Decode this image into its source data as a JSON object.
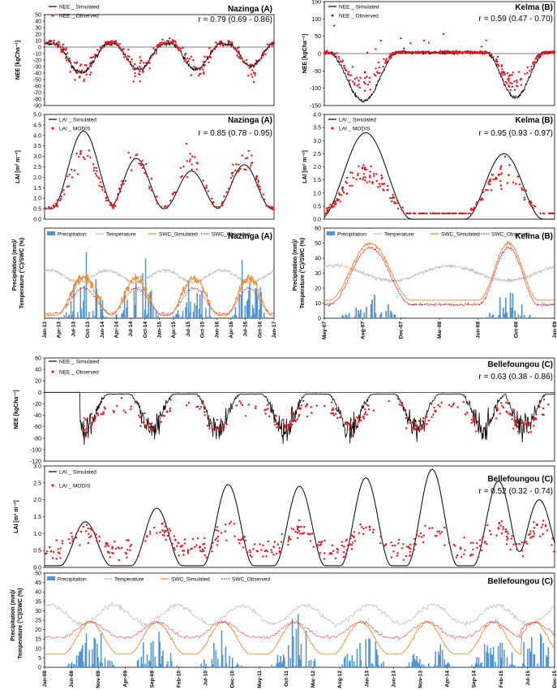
{
  "panels": {
    "nazinga_nee": {
      "site": "Nazinga (A)",
      "stat": "r = 0.79 (0.69 - 0.86)",
      "ylabel": "NEE [kgCha⁻¹]",
      "legend": [
        "NEE _ Simulated",
        "NEE _ Observed"
      ],
      "yticks": [
        "50",
        "40",
        "30",
        "20",
        "10",
        "0",
        "-10",
        "-20",
        "-30",
        "-40",
        "-50",
        "-60",
        "-70",
        "-80",
        "-90"
      ]
    },
    "kelma_nee": {
      "site": "Kelma (B)",
      "stat": "r = 0.59 (0.47 - 0.70)",
      "ylabel": "NEE [kgCha⁻¹]",
      "legend": [
        "NEE _ Simulated",
        "NEE _ Observed"
      ],
      "yticks": [
        "150",
        "100",
        "50",
        "0",
        "-50",
        "-100",
        "-150"
      ]
    },
    "nazinga_lai": {
      "site": "Nazinga (A)",
      "stat": "r = 0.85 (0.78 - 0.95)",
      "ylabel": "LAI [m² m⁻²]",
      "legend": [
        "LAI _ Simulated",
        "LAI _ MODIS"
      ],
      "yticks": [
        "5.0",
        "4.5",
        "4.0",
        "3.5",
        "3.0",
        "2.5",
        "2.0",
        "1.5",
        "1.0",
        "0.5",
        "0.0"
      ]
    },
    "kelma_lai": {
      "site": "Kelma (B)",
      "stat": "r = 0.95 (0.93 - 0.97)",
      "ylabel": "LAI [m² m⁻²]",
      "legend": [
        "LAI _ Simulated",
        "LAI _ MODIS"
      ],
      "yticks": [
        "4.0",
        "3.5",
        "3.0",
        "2.5",
        "2.0",
        "1.5",
        "1.0",
        "0.5",
        "0.0"
      ]
    },
    "nazinga_met": {
      "site": "Nazinga (A)",
      "ylabel": "Precipitation (mm)/ Temperature (°C)/SWC (%)",
      "legend": [
        "Precipitation",
        "Temperature",
        "SWC_Simulated",
        "SWC_Observed"
      ],
      "xticks": [
        "Jan-13",
        "Apr-13",
        "Jul-13",
        "Oct-13",
        "Jan-14",
        "Apr-14",
        "Jul-14",
        "Oct-14",
        "Jan-15",
        "Apr-15",
        "Jul-15",
        "Oct-15",
        "Jan-16",
        "Apr-16",
        "Jul-16",
        "Oct-16",
        "Jan-17"
      ]
    },
    "kelma_met": {
      "site": "Kelma (B)",
      "ylabel": "Precipitation (mm)/ Temperature (°C)/SWC (%)",
      "legend": [
        "Precipitation",
        "Temperature",
        "SWC_Simulated",
        "SWC_Observed"
      ],
      "yticks": [
        "60",
        "50",
        "40",
        "30",
        "20",
        "10",
        "0"
      ],
      "xticks": [
        "May-07",
        "Aug-07",
        "Dec-07",
        "Mar-08",
        "Jun-08",
        "Oct-08",
        "Jan-09"
      ]
    },
    "bel_nee": {
      "site": "Bellefoungou (C)",
      "stat": "r = 0.63 (0.38 - 0.86)",
      "ylabel": "NEE [kgCha⁻¹]",
      "legend": [
        "NEE _ Simulated",
        "NEE _ Observed"
      ],
      "yticks": [
        "60",
        "40",
        "20",
        "0",
        "-20",
        "-40",
        "-60",
        "-80",
        "-100",
        "-120"
      ]
    },
    "bel_lai": {
      "site": "Bellefoungou (C)",
      "stat": "r = 0.52 (0.32 - 0.74)",
      "ylabel": "LAI [m² m⁻²]",
      "legend": [
        "LAI _ Simulated",
        "LAI _ MODIS"
      ],
      "yticks": [
        "3.0",
        "2.5",
        "2.0",
        "1.5",
        "1.0",
        "0.5",
        "0.0"
      ]
    },
    "bel_met": {
      "site": "Bellefoungou (C)",
      "ylabel": "Precipitation (mm)/ Temperature (°C)/SWC (%)",
      "legend": [
        "Precipitation",
        "Temperature",
        "SWC_Simulated",
        "SWC_Observed"
      ],
      "yticks": [
        "50",
        "45",
        "40",
        "35",
        "30",
        "25",
        "20",
        "15",
        "10",
        "5",
        "0"
      ],
      "xticks": [
        "Jan-08",
        "Jun-08",
        "Nov-08",
        "Apr-09",
        "Sep-09",
        "Feb-10",
        "Jul-10",
        "Dec-10",
        "May-11",
        "Oct-11",
        "Mar-12",
        "Aug-12",
        "Jan-13",
        "Jun-13",
        "Nov-13",
        "Apr-14",
        "Sep-14",
        "Feb-15",
        "Jul-15",
        "Dec-15"
      ]
    }
  },
  "chart_data": [
    {
      "type": "line",
      "panel": "Nazinga (A) NEE",
      "x_range": [
        "Jan-13",
        "Jan-17"
      ],
      "ylim": [
        -90,
        50
      ],
      "series": [
        {
          "name": "NEE _ Simulated",
          "seasonal_min": [
            -45,
            -40,
            -40,
            -35
          ],
          "dry_season_level": 5
        },
        {
          "name": "NEE _ Observed",
          "range": [
            -85,
            40
          ]
        }
      ],
      "r": "0.79 (0.69 - 0.86)"
    },
    {
      "type": "line",
      "panel": "Kelma (B) NEE",
      "x_range": [
        "May-07",
        "Jan-09"
      ],
      "ylim": [
        -150,
        150
      ],
      "series": [
        {
          "name": "NEE _ Simulated",
          "seasonal_min": [
            -145,
            -145
          ],
          "dry_season_level": 5
        },
        {
          "name": "NEE _ Observed",
          "range": [
            -140,
            140
          ]
        }
      ],
      "r": "0.59 (0.47 - 0.70)"
    },
    {
      "type": "line",
      "panel": "Nazinga (A) LAI",
      "x_range": [
        "Jan-13",
        "Jan-17"
      ],
      "ylim": [
        0,
        5
      ],
      "series": [
        {
          "name": "LAI _ Simulated",
          "seasonal_peak": [
            4.2,
            2.9,
            2.3,
            2.6
          ],
          "minimum": 0.5
        },
        {
          "name": "LAI _ MODIS",
          "range": [
            0.2,
            4.3
          ]
        }
      ],
      "r": "0.85 (0.78 - 0.95)"
    },
    {
      "type": "line",
      "panel": "Kelma (B) LAI",
      "x_range": [
        "May-07",
        "Jan-09"
      ],
      "ylim": [
        0,
        4
      ],
      "series": [
        {
          "name": "LAI _ Simulated",
          "seasonal_peak": [
            3.3,
            2.5
          ],
          "minimum": 0.0
        },
        {
          "name": "LAI _ MODIS",
          "range": [
            0.2,
            3.5
          ]
        }
      ],
      "r": "0.95 (0.93 - 0.97)"
    },
    {
      "type": "bar",
      "panel": "Nazinga (A) met",
      "x_range": [
        "Jan-13",
        "Jan-17"
      ],
      "series": [
        {
          "name": "Precipitation",
          "peak": 55
        },
        {
          "name": "Temperature",
          "range": [
            22,
            38
          ]
        },
        {
          "name": "SWC_Simulated",
          "range": [
            2,
            35
          ]
        },
        {
          "name": "SWC_Observed",
          "range": [
            2,
            30
          ]
        }
      ]
    },
    {
      "type": "bar",
      "panel": "Kelma (B) met",
      "x_range": [
        "May-07",
        "Jan-09"
      ],
      "ylim": [
        0,
        60
      ],
      "series": [
        {
          "name": "Precipitation",
          "peak": 20
        },
        {
          "name": "Temperature",
          "range": [
            20,
            40
          ]
        },
        {
          "name": "SWC_Simulated",
          "range": [
            8,
            52
          ]
        },
        {
          "name": "SWC_Observed",
          "range": [
            5,
            50
          ]
        }
      ]
    },
    {
      "type": "line",
      "panel": "Bellefoungou (C) NEE",
      "x_range": [
        "Jan-08",
        "Dec-15"
      ],
      "ylim": [
        -120,
        60
      ],
      "series": [
        {
          "name": "NEE _ Simulated",
          "range": [
            -100,
            0
          ]
        },
        {
          "name": "NEE _ Observed",
          "range": [
            -95,
            40
          ]
        }
      ],
      "r": "0.63 (0.38 - 0.86)"
    },
    {
      "type": "line",
      "panel": "Bellefoungou (C) LAI",
      "x_range": [
        "Jan-08",
        "Dec-15"
      ],
      "ylim": [
        0,
        3
      ],
      "series": [
        {
          "name": "LAI _ Simulated",
          "seasonal_peak": [
            1.3,
            1.7,
            2.4,
            2.35,
            2.6,
            2.85,
            2.5,
            1.95
          ],
          "minimum": 0.05
        },
        {
          "name": "LAI _ MODIS",
          "range": [
            0.1,
            2.2
          ]
        }
      ],
      "r": "0.52 (0.32 - 0.74)"
    },
    {
      "type": "bar",
      "panel": "Bellefoungou (C) met",
      "x_range": [
        "Jan-08",
        "Dec-15"
      ],
      "ylim": [
        0,
        50
      ],
      "series": [
        {
          "name": "Precipitation",
          "peak": 41
        },
        {
          "name": "Temperature",
          "range": [
            20,
            36
          ]
        },
        {
          "name": "SWC_Simulated",
          "range": [
            6,
            26
          ]
        },
        {
          "name": "SWC_Observed",
          "range": [
            16,
            26
          ]
        }
      ]
    }
  ]
}
